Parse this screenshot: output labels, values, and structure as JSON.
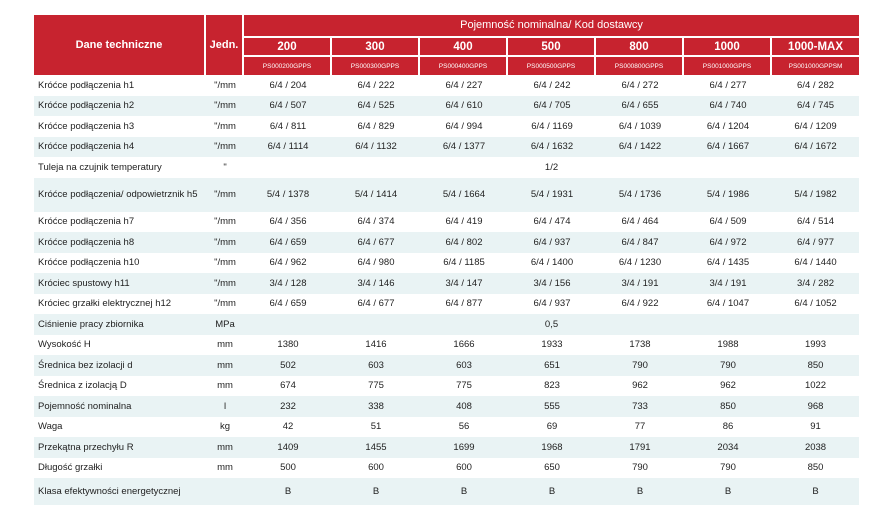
{
  "table": {
    "header_name": "Dane techniczne",
    "header_unit": "Jedn.",
    "header_group": "Pojemność nominalna/ Kod dostawcy",
    "capacities": [
      "200",
      "300",
      "400",
      "500",
      "800",
      "1000",
      "1000-MAX"
    ],
    "codes": [
      "PS000200GPPS",
      "PS000300GPPS",
      "PS000400GPPS",
      "PS000500GPPS",
      "PS000800GPPS",
      "PS001000GPPS",
      "PS001000GPPSM"
    ],
    "rows": [
      {
        "name": "Króćce podłączenia h1",
        "unit": "\"/mm",
        "values": [
          "6/4  /  204",
          "6/4  /  222",
          "6/4  /  227",
          "6/4  /  242",
          "6/4  /  272",
          "6/4  /  277",
          "6/4  /  282"
        ]
      },
      {
        "name": "Króćce podłączenia h2",
        "unit": "\"/mm",
        "values": [
          "6/4  /  507",
          "6/4  /  525",
          "6/4  /  610",
          "6/4  /  705",
          "6/4  /  655",
          "6/4  /  740",
          "6/4  /  745"
        ]
      },
      {
        "name": "Króćce podłączenia h3",
        "unit": "\"/mm",
        "values": [
          "6/4  /  811",
          "6/4  /  829",
          "6/4  /  994",
          "6/4  /  1169",
          "6/4  /  1039",
          "6/4  /  1204",
          "6/4  /  1209"
        ]
      },
      {
        "name": "Króćce podłączenia h4",
        "unit": "\"/mm",
        "values": [
          "6/4  /  1114",
          "6/4  /  1132",
          "6/4  /  1377",
          "6/4  /  1632",
          "6/4  /  1422",
          "6/4  /  1667",
          "6/4  /  1672"
        ]
      },
      {
        "name": "Tuleja na czujnik temperatury",
        "unit": "\"",
        "merged": "1/2"
      },
      {
        "name": "Króćce podłączenia/ odpowietrznik h5",
        "unit": "\"/mm",
        "tall": "tallest",
        "values": [
          "5/4  /  1378",
          "5/4  /  1414",
          "5/4  /  1664",
          "5/4  /  1931",
          "5/4  /  1736",
          "5/4  /  1986",
          "5/4  /  1982"
        ]
      },
      {
        "name": "Króćce podłączenia h7",
        "unit": "\"/mm",
        "values": [
          "6/4  /  356",
          "6/4  /  374",
          "6/4  /  419",
          "6/4  /  474",
          "6/4  /  464",
          "6/4  /  509",
          "6/4  /  514"
        ]
      },
      {
        "name": "Króćce podłączenia h8",
        "unit": "\"/mm",
        "values": [
          "6/4  /  659",
          "6/4  /  677",
          "6/4  /  802",
          "6/4  /  937",
          "6/4  /  847",
          "6/4  /  972",
          "6/4  /  977"
        ]
      },
      {
        "name": "Króćce podłączenia h10",
        "unit": "\"/mm",
        "values": [
          "6/4  /  962",
          "6/4  /  980",
          "6/4  /  1185",
          "6/4  /  1400",
          "6/4  /  1230",
          "6/4  /  1435",
          "6/4  /  1440"
        ]
      },
      {
        "name": "Króciec spustowy h11",
        "unit": "\"/mm",
        "values": [
          "3/4  /  128",
          "3/4  /  146",
          "3/4  /  147",
          "3/4  /  156",
          "3/4  /  191",
          "3/4  /  191",
          "3/4  /  282"
        ]
      },
      {
        "name": "Króciec grzałki elektrycznej h12",
        "unit": "\"/mm",
        "values": [
          "6/4 / 659",
          "6/4 / 677",
          "6/4 / 877",
          "6/4 / 937",
          "6/4 / 922",
          "6/4 / 1047",
          "6/4 / 1052"
        ]
      },
      {
        "name": "Ciśnienie pracy zbiornika",
        "unit": "MPa",
        "merged": "0,5"
      },
      {
        "name": "Wysokość H",
        "unit": "mm",
        "values": [
          "1380",
          "1416",
          "1666",
          "1933",
          "1738",
          "1988",
          "1993"
        ]
      },
      {
        "name": "Średnica bez izolacji d",
        "unit": "mm",
        "values": [
          "502",
          "603",
          "603",
          "651",
          "790",
          "790",
          "850"
        ]
      },
      {
        "name": "Średnica z izolacją D",
        "unit": "mm",
        "values": [
          "674",
          "775",
          "775",
          "823",
          "962",
          "962",
          "1022"
        ]
      },
      {
        "name": "Pojemność nominalna",
        "unit": "l",
        "values": [
          "232",
          "338",
          "408",
          "555",
          "733",
          "850",
          "968"
        ]
      },
      {
        "name": "Waga",
        "unit": "kg",
        "values": [
          "42",
          "51",
          "56",
          "69",
          "77",
          "86",
          "91"
        ]
      },
      {
        "name": "Przekątna przechyłu R",
        "unit": "mm",
        "values": [
          "1409",
          "1455",
          "1699",
          "1968",
          "1791",
          "2034",
          "2038"
        ]
      },
      {
        "name": "Długość grzałki",
        "unit": "mm",
        "values": [
          "500",
          "600",
          "600",
          "650",
          "790",
          "790",
          "850"
        ]
      },
      {
        "name": "Klasa efektywności energetycznej",
        "unit": "",
        "tall": "tall",
        "values": [
          "B",
          "B",
          "B",
          "B",
          "B",
          "B",
          "B"
        ]
      }
    ]
  }
}
